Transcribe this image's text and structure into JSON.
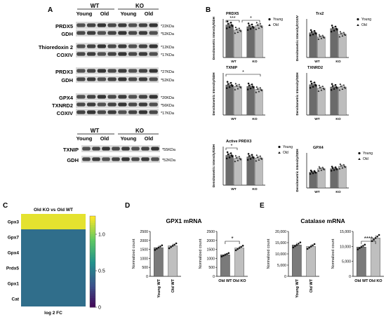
{
  "panel_letters": [
    "A",
    "B",
    "C",
    "D",
    "E"
  ],
  "blots": {
    "header1": {
      "wt": "WT",
      "ko": "KO",
      "young": "Young",
      "old": "Old"
    },
    "groups": [
      {
        "rows": [
          {
            "protein": "PRDX5",
            "size": "*22KDa"
          },
          {
            "protein": "GDH",
            "size": "*52KDa"
          }
        ]
      },
      {
        "rows": [
          {
            "protein": "Thioredoxin 2",
            "size": "*12KDa"
          },
          {
            "protein": "COXIV",
            "size": "*17KDa"
          }
        ]
      },
      {
        "rows": [
          {
            "protein": "PRDX3",
            "size": "*27KDa"
          },
          {
            "protein": "GDH",
            "size": "*52KDa"
          }
        ]
      },
      {
        "rows": [
          {
            "protein": "GPX4",
            "size": "*20KDa"
          },
          {
            "protein": "TXNRD2",
            "size": "*56KDa"
          },
          {
            "protein": "COXIV",
            "size": "*17KDa"
          }
        ]
      }
    ],
    "header2": {
      "wt": "WT",
      "ko": "KO",
      "young": "Young",
      "old": "Old"
    },
    "group2": {
      "rows": [
        {
          "protein": "TXNIP",
          "size": "*55KDa"
        },
        {
          "protein": "GDH",
          "size": "*52KDa"
        }
      ]
    }
  },
  "chart_data": [
    {
      "id": "prdx5",
      "type": "bar",
      "title": "PRDX5",
      "ylabel": "Densitometric Intensity/GDH",
      "categories": [
        "WT",
        "KO"
      ],
      "legend": [
        "Young",
        "Old"
      ],
      "series": [
        {
          "name": "Young",
          "values": [
            0.38,
            0.36
          ]
        },
        {
          "name": "Old",
          "values": [
            0.32,
            0.37
          ]
        }
      ],
      "ylim": [
        0,
        0.45
      ],
      "significance": [
        {
          "label": "***",
          "between": "WT Young - WT Old"
        },
        {
          "label": "*",
          "between": "WT Old - KO Old"
        }
      ]
    },
    {
      "id": "trx2",
      "type": "bar",
      "title": "Trx2",
      "ylabel": "Densitometric Intensity/COXIV",
      "categories": [
        "WT",
        "KO"
      ],
      "legend": [
        "Young",
        "Old"
      ],
      "series": [
        {
          "name": "Young",
          "values": [
            0.9,
            1.05
          ]
        },
        {
          "name": "Old",
          "values": [
            0.75,
            0.85
          ]
        }
      ],
      "ylim": [
        0,
        1.4
      ]
    },
    {
      "id": "txnip",
      "type": "bar",
      "title": "TXNIP",
      "ylabel": "Densitometric Intensity/GDH",
      "categories": [
        "WT",
        "KO"
      ],
      "series": [
        {
          "name": "Young",
          "values": [
            1.0,
            0.95
          ]
        },
        {
          "name": "Old",
          "values": [
            0.95,
            0.85
          ]
        }
      ],
      "ylim": [
        0,
        1.4
      ],
      "significance": [
        {
          "label": "*",
          "between": "WT Young - KO Old"
        }
      ]
    },
    {
      "id": "txnrd2",
      "type": "bar",
      "title": "TXNRD2",
      "ylabel": "Densitometric Intensity/GDH",
      "categories": [
        "WT",
        "KO"
      ],
      "series": [
        {
          "name": "Young",
          "values": [
            1.3,
            1.2
          ]
        },
        {
          "name": "Old",
          "values": [
            1.15,
            1.2
          ]
        }
      ],
      "ylim": [
        0,
        1.8
      ]
    },
    {
      "id": "active_prdx3",
      "type": "bar",
      "title": "Active PRDX3",
      "ylabel": "Densitometric Intensity/GDH",
      "categories": [
        "WT",
        "KO"
      ],
      "legend": [
        "Young",
        "Old"
      ],
      "series": [
        {
          "name": "Young",
          "values": [
            0.58,
            0.55
          ]
        },
        {
          "name": "Old",
          "values": [
            0.52,
            0.53
          ]
        }
      ],
      "ylim": [
        0,
        0.75
      ],
      "significance": [
        {
          "label": "*",
          "between": "WT Young - WT Old"
        }
      ]
    },
    {
      "id": "gpx4",
      "type": "bar",
      "title": "GPX4",
      "ylabel": "Densitometric Intensity/GDH",
      "categories": [
        "WT",
        "KO"
      ],
      "legend": [
        "Young",
        "Old"
      ],
      "series": [
        {
          "name": "Young",
          "values": [
            0.45,
            0.55
          ]
        },
        {
          "name": "Old",
          "values": [
            0.55,
            0.62
          ]
        }
      ],
      "ylim": [
        0,
        1.0
      ]
    },
    {
      "id": "heatmap",
      "type": "heatmap",
      "title": "Old KO vs Old WT",
      "xlabel": "log 2 FC",
      "rows": [
        "Gpx3",
        "Gpx7",
        "Gpx4",
        "Prdx5",
        "Gpx1",
        "Cat"
      ],
      "values": [
        1.2,
        0.45,
        0.45,
        0.45,
        0.45,
        0.45
      ],
      "colorbar": {
        "min": 0,
        "max": 1.25,
        "ticks": [
          "0",
          "0.5",
          "1.0"
        ]
      }
    },
    {
      "id": "gpx1_young",
      "type": "bar",
      "title": "GPX1 mRNA",
      "ylabel": "Normalized count",
      "categories": [
        "Young WT",
        "Old WT"
      ],
      "values": [
        1600,
        1700
      ],
      "ylim": [
        0,
        2500
      ],
      "yticks": [
        "0",
        "500",
        "1000",
        "1500",
        "2000",
        "2500"
      ]
    },
    {
      "id": "gpx1_old",
      "type": "bar",
      "ylabel": "Normalized count",
      "categories": [
        "Old WT",
        "Old KO"
      ],
      "values": [
        1200,
        1580
      ],
      "ylim": [
        0,
        2500
      ],
      "yticks": [
        "0",
        "500",
        "1000",
        "1500",
        "2000",
        "2500"
      ],
      "significance": [
        {
          "label": "*"
        }
      ]
    },
    {
      "id": "catalase_young",
      "type": "bar",
      "title": "Catalase mRNA",
      "ylabel": "Normalized count",
      "categories": [
        "Young WT",
        "Old WT"
      ],
      "values": [
        14000,
        13300
      ],
      "ylim": [
        0,
        20000
      ],
      "yticks": [
        "0",
        "5,000",
        "10,000",
        "15,000",
        "20,000"
      ]
    },
    {
      "id": "catalase_old",
      "type": "bar",
      "ylabel": "Normalized count",
      "categories": [
        "Old WT",
        "Old KO"
      ],
      "values": [
        9800,
        12800
      ],
      "ylim": [
        0,
        15000
      ],
      "yticks": [
        "0",
        "5,000",
        "10,000",
        "15,000"
      ],
      "significance": [
        {
          "label": "****"
        }
      ]
    }
  ]
}
